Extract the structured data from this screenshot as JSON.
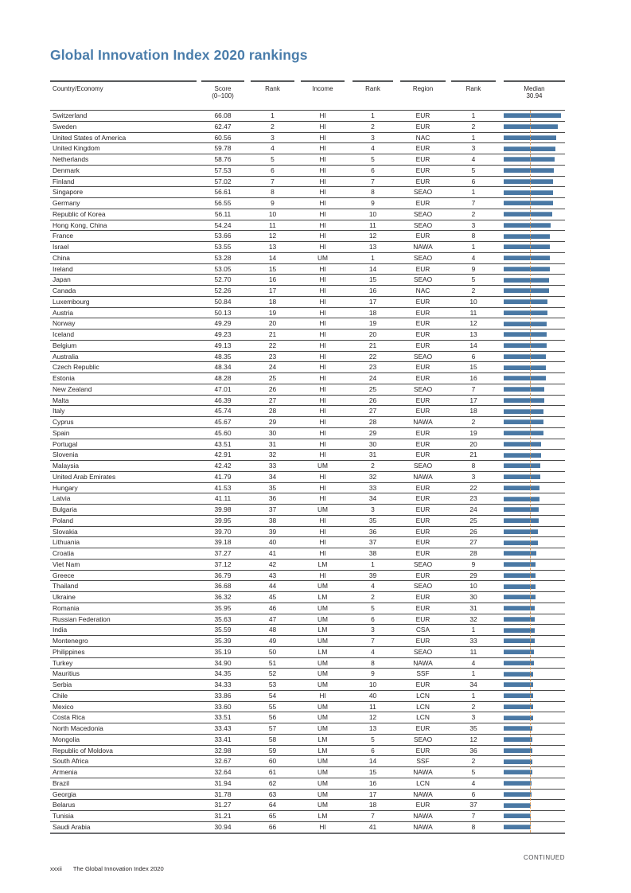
{
  "page": {
    "title": "Global Innovation Index 2020 rankings",
    "continued_label": "CONTINUED",
    "page_number": "xxxii",
    "footer_title": "The Global Innovation Index 2020"
  },
  "colors": {
    "title_blue": "#4a7dab",
    "bar_blue": "#4a78a4",
    "median_line_orange": "#dd9a57"
  },
  "table": {
    "headers": [
      {
        "line1": "Country/Economy",
        "line2": ""
      },
      {
        "line1": "Score",
        "line2": "(0–100)"
      },
      {
        "line1": "Rank",
        "line2": ""
      },
      {
        "line1": "Income",
        "line2": ""
      },
      {
        "line1": "Rank",
        "line2": ""
      },
      {
        "line1": "Region",
        "line2": ""
      },
      {
        "line1": "Rank",
        "line2": ""
      },
      {
        "line1": "Median",
        "line2": "30.94"
      }
    ],
    "median_value": 30.94,
    "max_score": 66.08,
    "rows": [
      [
        "Switzerland",
        "66.08",
        "1",
        "HI",
        "1",
        "EUR",
        "1"
      ],
      [
        "Sweden",
        "62.47",
        "2",
        "HI",
        "2",
        "EUR",
        "2"
      ],
      [
        "United States of America",
        "60.56",
        "3",
        "HI",
        "3",
        "NAC",
        "1"
      ],
      [
        "United Kingdom",
        "59.78",
        "4",
        "HI",
        "4",
        "EUR",
        "3"
      ],
      [
        "Netherlands",
        "58.76",
        "5",
        "HI",
        "5",
        "EUR",
        "4"
      ],
      [
        "Denmark",
        "57.53",
        "6",
        "HI",
        "6",
        "EUR",
        "5"
      ],
      [
        "Finland",
        "57.02",
        "7",
        "HI",
        "7",
        "EUR",
        "6"
      ],
      [
        "Singapore",
        "56.61",
        "8",
        "HI",
        "8",
        "SEAO",
        "1"
      ],
      [
        "Germany",
        "56.55",
        "9",
        "HI",
        "9",
        "EUR",
        "7"
      ],
      [
        "Republic of Korea",
        "56.11",
        "10",
        "HI",
        "10",
        "SEAO",
        "2"
      ],
      [
        "Hong Kong, China",
        "54.24",
        "11",
        "HI",
        "11",
        "SEAO",
        "3"
      ],
      [
        "France",
        "53.66",
        "12",
        "HI",
        "12",
        "EUR",
        "8"
      ],
      [
        "Israel",
        "53.55",
        "13",
        "HI",
        "13",
        "NAWA",
        "1"
      ],
      [
        "China",
        "53.28",
        "14",
        "UM",
        "1",
        "SEAO",
        "4"
      ],
      [
        "Ireland",
        "53.05",
        "15",
        "HI",
        "14",
        "EUR",
        "9"
      ],
      [
        "Japan",
        "52.70",
        "16",
        "HI",
        "15",
        "SEAO",
        "5"
      ],
      [
        "Canada",
        "52.26",
        "17",
        "HI",
        "16",
        "NAC",
        "2"
      ],
      [
        "Luxembourg",
        "50.84",
        "18",
        "HI",
        "17",
        "EUR",
        "10"
      ],
      [
        "Austria",
        "50.13",
        "19",
        "HI",
        "18",
        "EUR",
        "11"
      ],
      [
        "Norway",
        "49.29",
        "20",
        "HI",
        "19",
        "EUR",
        "12"
      ],
      [
        "Iceland",
        "49.23",
        "21",
        "HI",
        "20",
        "EUR",
        "13"
      ],
      [
        "Belgium",
        "49.13",
        "22",
        "HI",
        "21",
        "EUR",
        "14"
      ],
      [
        "Australia",
        "48.35",
        "23",
        "HI",
        "22",
        "SEAO",
        "6"
      ],
      [
        "Czech Republic",
        "48.34",
        "24",
        "HI",
        "23",
        "EUR",
        "15"
      ],
      [
        "Estonia",
        "48.28",
        "25",
        "HI",
        "24",
        "EUR",
        "16"
      ],
      [
        "New Zealand",
        "47.01",
        "26",
        "HI",
        "25",
        "SEAO",
        "7"
      ],
      [
        "Malta",
        "46.39",
        "27",
        "HI",
        "26",
        "EUR",
        "17"
      ],
      [
        "Italy",
        "45.74",
        "28",
        "HI",
        "27",
        "EUR",
        "18"
      ],
      [
        "Cyprus",
        "45.67",
        "29",
        "HI",
        "28",
        "NAWA",
        "2"
      ],
      [
        "Spain",
        "45.60",
        "30",
        "HI",
        "29",
        "EUR",
        "19"
      ],
      [
        "Portugal",
        "43.51",
        "31",
        "HI",
        "30",
        "EUR",
        "20"
      ],
      [
        "Slovenia",
        "42.91",
        "32",
        "HI",
        "31",
        "EUR",
        "21"
      ],
      [
        "Malaysia",
        "42.42",
        "33",
        "UM",
        "2",
        "SEAO",
        "8"
      ],
      [
        "United Arab Emirates",
        "41.79",
        "34",
        "HI",
        "32",
        "NAWA",
        "3"
      ],
      [
        "Hungary",
        "41.53",
        "35",
        "HI",
        "33",
        "EUR",
        "22"
      ],
      [
        "Latvia",
        "41.11",
        "36",
        "HI",
        "34",
        "EUR",
        "23"
      ],
      [
        "Bulgaria",
        "39.98",
        "37",
        "UM",
        "3",
        "EUR",
        "24"
      ],
      [
        "Poland",
        "39.95",
        "38",
        "HI",
        "35",
        "EUR",
        "25"
      ],
      [
        "Slovakia",
        "39.70",
        "39",
        "HI",
        "36",
        "EUR",
        "26"
      ],
      [
        "Lithuania",
        "39.18",
        "40",
        "HI",
        "37",
        "EUR",
        "27"
      ],
      [
        "Croatia",
        "37.27",
        "41",
        "HI",
        "38",
        "EUR",
        "28"
      ],
      [
        "Viet Nam",
        "37.12",
        "42",
        "LM",
        "1",
        "SEAO",
        "9"
      ],
      [
        "Greece",
        "36.79",
        "43",
        "HI",
        "39",
        "EUR",
        "29"
      ],
      [
        "Thailand",
        "36.68",
        "44",
        "UM",
        "4",
        "SEAO",
        "10"
      ],
      [
        "Ukraine",
        "36.32",
        "45",
        "LM",
        "2",
        "EUR",
        "30"
      ],
      [
        "Romania",
        "35.95",
        "46",
        "UM",
        "5",
        "EUR",
        "31"
      ],
      [
        "Russian Federation",
        "35.63",
        "47",
        "UM",
        "6",
        "EUR",
        "32"
      ],
      [
        "India",
        "35.59",
        "48",
        "LM",
        "3",
        "CSA",
        "1"
      ],
      [
        "Montenegro",
        "35.39",
        "49",
        "UM",
        "7",
        "EUR",
        "33"
      ],
      [
        "Philippines",
        "35.19",
        "50",
        "LM",
        "4",
        "SEAO",
        "11"
      ],
      [
        "Turkey",
        "34.90",
        "51",
        "UM",
        "8",
        "NAWA",
        "4"
      ],
      [
        "Mauritius",
        "34.35",
        "52",
        "UM",
        "9",
        "SSF",
        "1"
      ],
      [
        "Serbia",
        "34.33",
        "53",
        "UM",
        "10",
        "EUR",
        "34"
      ],
      [
        "Chile",
        "33.86",
        "54",
        "HI",
        "40",
        "LCN",
        "1"
      ],
      [
        "Mexico",
        "33.60",
        "55",
        "UM",
        "11",
        "LCN",
        "2"
      ],
      [
        "Costa Rica",
        "33.51",
        "56",
        "UM",
        "12",
        "LCN",
        "3"
      ],
      [
        "North Macedonia",
        "33.43",
        "57",
        "UM",
        "13",
        "EUR",
        "35"
      ],
      [
        "Mongolia",
        "33.41",
        "58",
        "LM",
        "5",
        "SEAO",
        "12"
      ],
      [
        "Republic of Moldova",
        "32.98",
        "59",
        "LM",
        "6",
        "EUR",
        "36"
      ],
      [
        "South Africa",
        "32.67",
        "60",
        "UM",
        "14",
        "SSF",
        "2"
      ],
      [
        "Armenia",
        "32.64",
        "61",
        "UM",
        "15",
        "NAWA",
        "5"
      ],
      [
        "Brazil",
        "31.94",
        "62",
        "UM",
        "16",
        "LCN",
        "4"
      ],
      [
        "Georgia",
        "31.78",
        "63",
        "UM",
        "17",
        "NAWA",
        "6"
      ],
      [
        "Belarus",
        "31.27",
        "64",
        "UM",
        "18",
        "EUR",
        "37"
      ],
      [
        "Tunisia",
        "31.21",
        "65",
        "LM",
        "7",
        "NAWA",
        "7"
      ],
      [
        "Saudi Arabia",
        "30.94",
        "66",
        "HI",
        "41",
        "NAWA",
        "8"
      ]
    ]
  }
}
